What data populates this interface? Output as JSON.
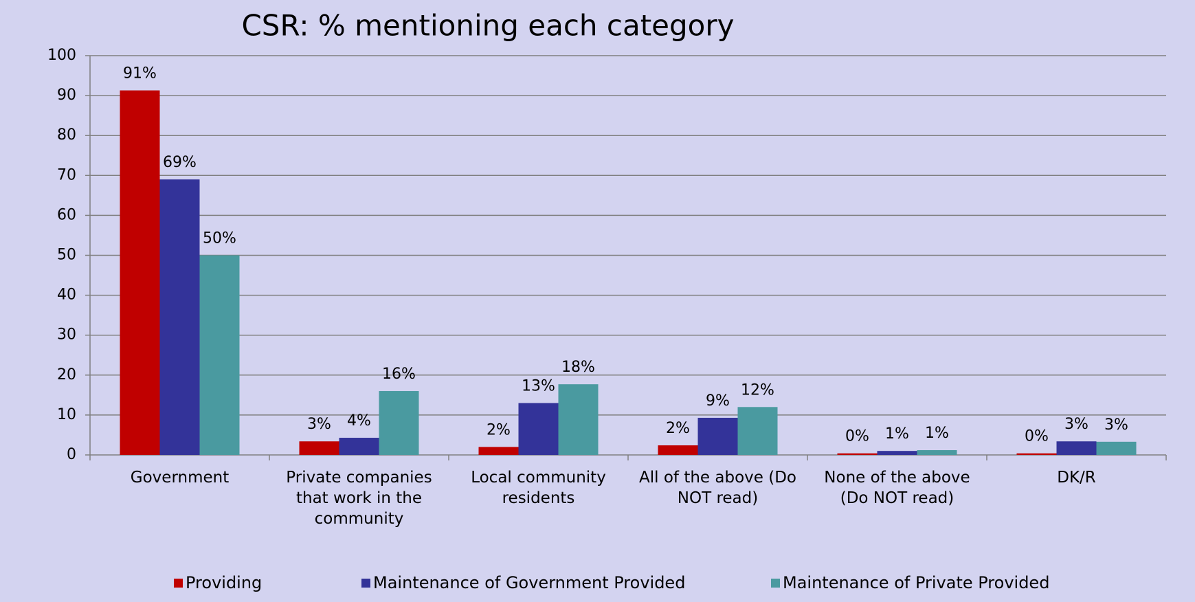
{
  "chart_data": {
    "type": "bar",
    "title": "CSR: % mentioning each category",
    "categories": [
      "Government",
      "Private companies that work in the community",
      "Local community residents",
      "All of the above (Do NOT read)",
      "None of the above (Do NOT read)",
      "DK/R"
    ],
    "series": [
      {
        "name": "Providing",
        "color": "#c00000",
        "values": [
          91.3,
          3.4,
          2,
          2.4,
          0.4,
          0.4
        ],
        "value_labels": [
          "91%",
          "3%",
          "2%",
          "2%",
          "0%",
          "0%"
        ]
      },
      {
        "name": "Maintenance of Government Provided",
        "color": "#333399",
        "values": [
          69,
          4.3,
          13,
          9.3,
          1,
          3.4
        ],
        "value_labels": [
          "69%",
          "4%",
          "13%",
          "9%",
          "1%",
          "3%"
        ]
      },
      {
        "name": "Maintenance of Private Provided",
        "color": "#4a9aa0",
        "values": [
          50,
          16,
          17.7,
          12,
          1.2,
          3.3
        ],
        "value_labels": [
          "50%",
          "16%",
          "18%",
          "12%",
          "1%",
          "3%"
        ]
      }
    ],
    "ylim": [
      0,
      100
    ],
    "yticks": [
      0,
      10,
      20,
      30,
      40,
      50,
      60,
      70,
      80,
      90,
      100
    ],
    "grid": true,
    "legend": "bottom"
  }
}
